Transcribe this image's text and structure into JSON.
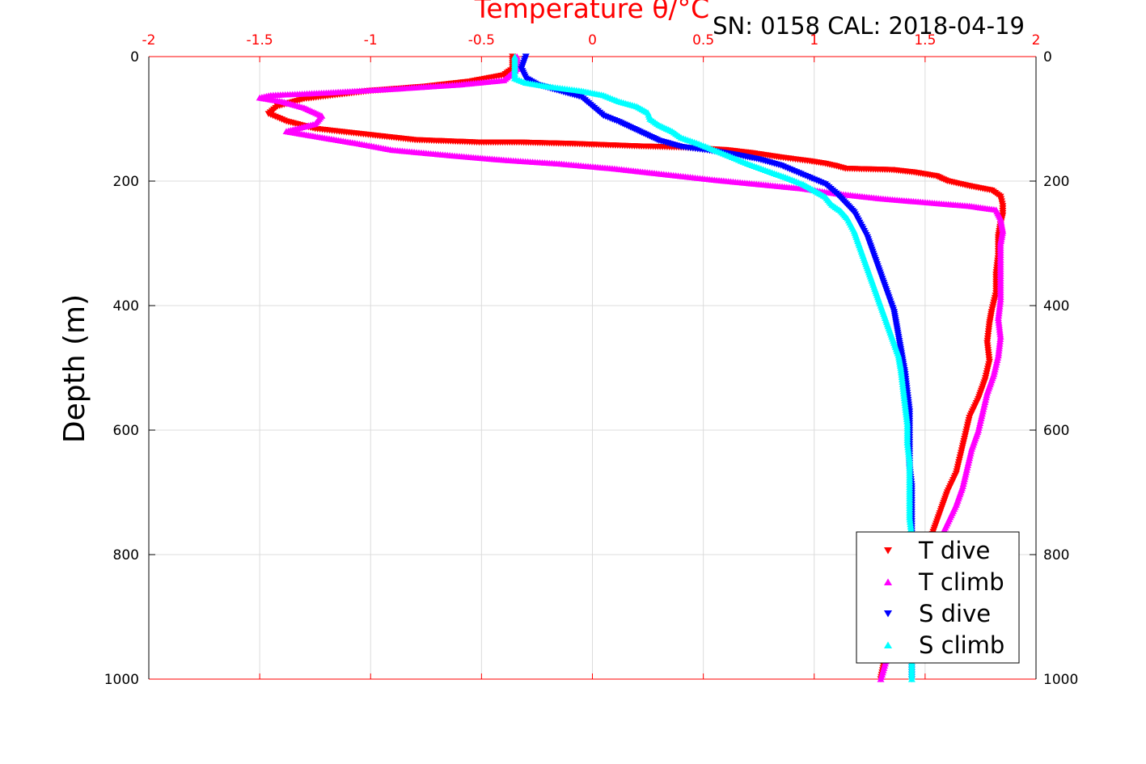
{
  "chart_data": {
    "type": "scatter",
    "title": "Temperature θ/°C",
    "subtitle": "SN: 0158  CAL: 2018-04-19",
    "xlabel": "Temperature θ/°C",
    "ylabel": "Depth (m)",
    "xlim": [
      -2,
      2
    ],
    "ylim": [
      0,
      1000
    ],
    "y_reversed": true,
    "x_ticks": [
      "-2",
      "-1.5",
      "-1",
      "-0.5",
      "0",
      "0.5",
      "1",
      "1.5",
      "2"
    ],
    "y_ticks": [
      "0",
      "200",
      "400",
      "600",
      "800",
      "1000"
    ],
    "grid": true,
    "legend_position": "bottom-right",
    "series": [
      {
        "name": "T dive",
        "color": "#ff0000",
        "marker": "triangle-down",
        "points": [
          [
            -0.36,
            0
          ],
          [
            -0.36,
            10
          ],
          [
            -0.36,
            20
          ],
          [
            -0.4,
            30
          ],
          [
            -0.55,
            40
          ],
          [
            -0.75,
            48
          ],
          [
            -1.0,
            55
          ],
          [
            -1.3,
            68
          ],
          [
            -1.42,
            80
          ],
          [
            -1.46,
            92
          ],
          [
            -1.38,
            104
          ],
          [
            -1.25,
            116
          ],
          [
            -1.0,
            126
          ],
          [
            -0.8,
            134
          ],
          [
            -0.5,
            138
          ],
          [
            -0.32,
            138
          ],
          [
            -0.1,
            140
          ],
          [
            0.05,
            142
          ],
          [
            0.2,
            144
          ],
          [
            0.4,
            146
          ],
          [
            0.6,
            150
          ],
          [
            0.72,
            155
          ],
          [
            0.85,
            162
          ],
          [
            0.98,
            168
          ],
          [
            1.05,
            172
          ],
          [
            1.1,
            176
          ],
          [
            1.14,
            180
          ],
          [
            1.35,
            182
          ],
          [
            1.45,
            186
          ],
          [
            1.55,
            192
          ],
          [
            1.6,
            200
          ],
          [
            1.7,
            208
          ],
          [
            1.8,
            215
          ],
          [
            1.84,
            225
          ],
          [
            1.85,
            240
          ],
          [
            1.85,
            255
          ],
          [
            1.84,
            270
          ],
          [
            1.83,
            290
          ],
          [
            1.83,
            320
          ],
          [
            1.82,
            350
          ],
          [
            1.82,
            380
          ],
          [
            1.8,
            410
          ],
          [
            1.79,
            430
          ],
          [
            1.78,
            460
          ],
          [
            1.79,
            490
          ],
          [
            1.77,
            520
          ],
          [
            1.74,
            550
          ],
          [
            1.7,
            580
          ],
          [
            1.68,
            610
          ],
          [
            1.66,
            640
          ],
          [
            1.64,
            670
          ],
          [
            1.6,
            700
          ],
          [
            1.57,
            730
          ],
          [
            1.54,
            760
          ],
          [
            1.51,
            790
          ],
          [
            1.45,
            830
          ],
          [
            1.4,
            870
          ],
          [
            1.36,
            910
          ],
          [
            1.33,
            950
          ],
          [
            1.3,
            1000
          ]
        ]
      },
      {
        "name": "T climb",
        "color": "#ff00ff",
        "marker": "triangle-up",
        "points": [
          [
            -0.34,
            0
          ],
          [
            -0.34,
            20
          ],
          [
            -0.4,
            38
          ],
          [
            -0.6,
            45
          ],
          [
            -0.9,
            52
          ],
          [
            -1.2,
            58
          ],
          [
            -1.45,
            62
          ],
          [
            -1.5,
            66
          ],
          [
            -1.4,
            72
          ],
          [
            -1.3,
            82
          ],
          [
            -1.22,
            95
          ],
          [
            -1.25,
            108
          ],
          [
            -1.38,
            120
          ],
          [
            -1.25,
            128
          ],
          [
            -1.05,
            140
          ],
          [
            -0.9,
            150
          ],
          [
            -0.6,
            160
          ],
          [
            -0.4,
            166
          ],
          [
            -0.15,
            172
          ],
          [
            0.1,
            180
          ],
          [
            0.3,
            188
          ],
          [
            0.55,
            198
          ],
          [
            0.75,
            205
          ],
          [
            0.95,
            212
          ],
          [
            1.1,
            220
          ],
          [
            1.3,
            228
          ],
          [
            1.5,
            234
          ],
          [
            1.7,
            240
          ],
          [
            1.82,
            246
          ],
          [
            1.84,
            260
          ],
          [
            1.85,
            280
          ],
          [
            1.84,
            300
          ],
          [
            1.84,
            330
          ],
          [
            1.84,
            360
          ],
          [
            1.84,
            390
          ],
          [
            1.83,
            420
          ],
          [
            1.84,
            450
          ],
          [
            1.83,
            480
          ],
          [
            1.81,
            510
          ],
          [
            1.78,
            540
          ],
          [
            1.76,
            570
          ],
          [
            1.74,
            600
          ],
          [
            1.71,
            630
          ],
          [
            1.69,
            660
          ],
          [
            1.67,
            690
          ],
          [
            1.64,
            720
          ],
          [
            1.6,
            750
          ],
          [
            1.56,
            780
          ],
          [
            1.51,
            820
          ],
          [
            1.45,
            860
          ],
          [
            1.39,
            900
          ],
          [
            1.34,
            950
          ],
          [
            1.3,
            1000
          ]
        ]
      },
      {
        "name": "S dive",
        "color": "#0000ff",
        "marker": "triangle-down",
        "points": [
          [
            -0.3,
            0
          ],
          [
            -0.32,
            20
          ],
          [
            -0.3,
            35
          ],
          [
            -0.25,
            45
          ],
          [
            -0.15,
            55
          ],
          [
            -0.05,
            65
          ],
          [
            0.0,
            80
          ],
          [
            0.05,
            95
          ],
          [
            0.12,
            105
          ],
          [
            0.18,
            115
          ],
          [
            0.24,
            125
          ],
          [
            0.3,
            135
          ],
          [
            0.4,
            145
          ],
          [
            0.55,
            152
          ],
          [
            0.65,
            158
          ],
          [
            0.75,
            165
          ],
          [
            0.85,
            175
          ],
          [
            0.95,
            190
          ],
          [
            1.05,
            205
          ],
          [
            1.1,
            220
          ],
          [
            1.14,
            235
          ],
          [
            1.18,
            250
          ],
          [
            1.21,
            270
          ],
          [
            1.24,
            290
          ],
          [
            1.26,
            310
          ],
          [
            1.28,
            330
          ],
          [
            1.3,
            350
          ],
          [
            1.32,
            370
          ],
          [
            1.34,
            390
          ],
          [
            1.36,
            410
          ],
          [
            1.37,
            430
          ],
          [
            1.38,
            450
          ],
          [
            1.39,
            470
          ],
          [
            1.4,
            490
          ],
          [
            1.41,
            510
          ],
          [
            1.42,
            540
          ],
          [
            1.43,
            570
          ],
          [
            1.43,
            600
          ],
          [
            1.43,
            630
          ],
          [
            1.43,
            660
          ],
          [
            1.44,
            690
          ],
          [
            1.44,
            720
          ],
          [
            1.44,
            750
          ],
          [
            1.44,
            780
          ],
          [
            1.44,
            820
          ],
          [
            1.44,
            860
          ],
          [
            1.44,
            900
          ],
          [
            1.44,
            950
          ],
          [
            1.44,
            1000
          ]
        ]
      },
      {
        "name": "S climb",
        "color": "#00ffff",
        "marker": "triangle-up",
        "points": [
          [
            -0.35,
            0
          ],
          [
            -0.35,
            20
          ],
          [
            -0.35,
            35
          ],
          [
            -0.3,
            42
          ],
          [
            -0.2,
            48
          ],
          [
            -0.05,
            55
          ],
          [
            0.05,
            62
          ],
          [
            0.12,
            72
          ],
          [
            0.2,
            80
          ],
          [
            0.25,
            90
          ],
          [
            0.26,
            100
          ],
          [
            0.3,
            110
          ],
          [
            0.36,
            120
          ],
          [
            0.4,
            130
          ],
          [
            0.48,
            140
          ],
          [
            0.55,
            150
          ],
          [
            0.62,
            160
          ],
          [
            0.7,
            172
          ],
          [
            0.8,
            185
          ],
          [
            0.88,
            195
          ],
          [
            0.95,
            205
          ],
          [
            1.0,
            215
          ],
          [
            1.05,
            225
          ],
          [
            1.08,
            238
          ],
          [
            1.12,
            248
          ],
          [
            1.15,
            260
          ],
          [
            1.18,
            280
          ],
          [
            1.2,
            300
          ],
          [
            1.22,
            320
          ],
          [
            1.24,
            340
          ],
          [
            1.26,
            360
          ],
          [
            1.28,
            380
          ],
          [
            1.3,
            400
          ],
          [
            1.32,
            420
          ],
          [
            1.34,
            440
          ],
          [
            1.36,
            460
          ],
          [
            1.38,
            480
          ],
          [
            1.39,
            500
          ],
          [
            1.4,
            530
          ],
          [
            1.41,
            560
          ],
          [
            1.42,
            590
          ],
          [
            1.42,
            620
          ],
          [
            1.43,
            650
          ],
          [
            1.43,
            680
          ],
          [
            1.43,
            710
          ],
          [
            1.43,
            740
          ],
          [
            1.44,
            770
          ],
          [
            1.44,
            800
          ],
          [
            1.44,
            850
          ],
          [
            1.44,
            900
          ],
          [
            1.44,
            950
          ],
          [
            1.44,
            1000
          ]
        ]
      }
    ]
  }
}
